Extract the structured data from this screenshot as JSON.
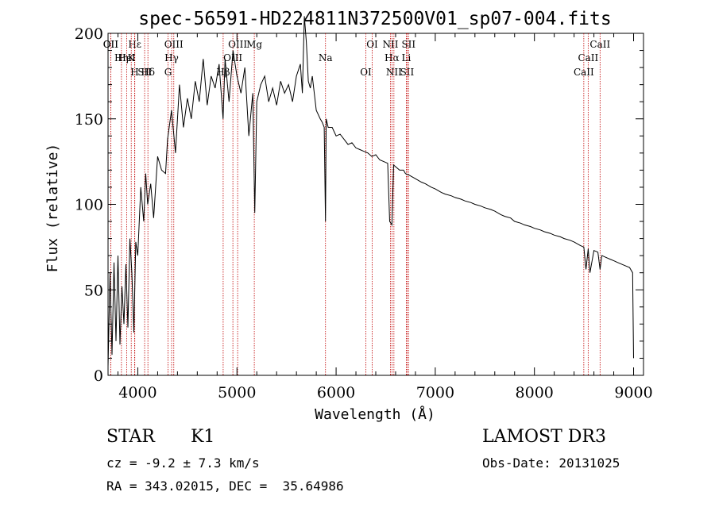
{
  "chart_data": {
    "type": "line",
    "title": "spec-56591-HD224811N372500V01_sp07-004.fits",
    "xlabel": "Wavelength (Å)",
    "ylabel": "Flux (relative)",
    "xlim": [
      3700,
      9100
    ],
    "ylim": [
      0,
      200
    ],
    "x_ticks": [
      4000,
      5000,
      6000,
      7000,
      8000,
      9000
    ],
    "y_ticks": [
      0,
      50,
      100,
      150,
      200
    ],
    "series": [
      {
        "name": "flux",
        "x": [
          3700,
          3720,
          3740,
          3760,
          3780,
          3800,
          3820,
          3840,
          3860,
          3880,
          3900,
          3920,
          3940,
          3960,
          3980,
          4000,
          4030,
          4060,
          4080,
          4100,
          4130,
          4160,
          4200,
          4240,
          4280,
          4300,
          4340,
          4380,
          4420,
          4460,
          4500,
          4540,
          4580,
          4620,
          4660,
          4700,
          4740,
          4780,
          4820,
          4860,
          4880,
          4920,
          4960,
          5000,
          5040,
          5080,
          5120,
          5160,
          5180,
          5200,
          5240,
          5280,
          5320,
          5360,
          5400,
          5440,
          5480,
          5520,
          5560,
          5600,
          5640,
          5660,
          5680,
          5700,
          5720,
          5740,
          5760,
          5800,
          5840,
          5860,
          5880,
          5893,
          5900,
          5920,
          5960,
          6000,
          6040,
          6080,
          6120,
          6160,
          6200,
          6240,
          6280,
          6320,
          6360,
          6400,
          6440,
          6480,
          6520,
          6540,
          6563,
          6580,
          6600,
          6640,
          6680,
          6700,
          6740,
          6800,
          6860,
          6900,
          6960,
          7000,
          7060,
          7100,
          7160,
          7200,
          7260,
          7300,
          7360,
          7400,
          7460,
          7500,
          7560,
          7600,
          7660,
          7700,
          7760,
          7800,
          7860,
          7900,
          7960,
          8000,
          8060,
          8100,
          8160,
          8200,
          8260,
          8300,
          8360,
          8400,
          8460,
          8498,
          8520,
          8542,
          8560,
          8600,
          8640,
          8662,
          8680,
          8720,
          8760,
          8800,
          8840,
          8880,
          8920,
          8960,
          8990,
          9000
        ],
        "values": [
          5,
          60,
          12,
          66,
          20,
          70,
          18,
          52,
          30,
          65,
          28,
          80,
          60,
          25,
          78,
          70,
          110,
          90,
          118,
          100,
          112,
          92,
          128,
          120,
          118,
          138,
          155,
          130,
          170,
          145,
          162,
          150,
          172,
          160,
          185,
          158,
          175,
          168,
          182,
          150,
          185,
          160,
          190,
          175,
          165,
          180,
          140,
          165,
          95,
          160,
          170,
          175,
          160,
          168,
          158,
          172,
          165,
          170,
          160,
          175,
          182,
          165,
          210,
          195,
          172,
          168,
          175,
          155,
          150,
          148,
          145,
          90,
          150,
          145,
          145,
          140,
          141,
          138,
          135,
          136,
          133,
          132,
          131,
          130,
          128,
          129,
          126,
          125,
          124,
          90,
          88,
          123,
          122,
          120,
          120,
          118,
          117,
          115,
          113,
          112,
          110,
          109,
          107,
          106,
          105,
          104,
          103,
          102,
          101,
          100,
          99,
          98,
          97,
          96,
          94,
          93,
          92,
          90,
          89,
          88,
          87,
          86,
          85,
          84,
          83,
          82,
          81,
          80,
          79,
          78,
          76,
          75,
          62,
          74,
          60,
          73,
          72,
          62,
          70,
          69,
          68,
          67,
          66,
          65,
          64,
          63,
          60,
          10
        ]
      }
    ],
    "lines": [
      {
        "name": "Hε",
        "x": 3970
      },
      {
        "name": "K",
        "x": 3934
      },
      {
        "name": "Hδ",
        "x": 4102
      },
      {
        "name": "OII",
        "x": 3727
      },
      {
        "name": "HeI",
        "x": 3889
      },
      {
        "name": "SII",
        "x": 4069
      },
      {
        "name": "OII",
        "x": 3727
      },
      {
        "name": "Hη",
        "x": 3835
      },
      {
        "name": "H",
        "x": 3968
      },
      {
        "name": "OIII",
        "x": 4363
      },
      {
        "name": "Hγ",
        "x": 4341
      },
      {
        "name": "G",
        "x": 4305
      },
      {
        "name": "OIII",
        "x": 5007
      },
      {
        "name": "OIII",
        "x": 4959
      },
      {
        "name": "Hβ",
        "x": 4861
      },
      {
        "name": "Mg",
        "x": 5175
      },
      {
        "name": "Na",
        "x": 5893
      },
      {
        "name": "OI",
        "x": 6300
      },
      {
        "name": "OI",
        "x": 6364
      },
      {
        "name": "Hα",
        "x": 6563
      },
      {
        "name": "SII",
        "x": 6716
      },
      {
        "name": "NII",
        "x": 6548
      },
      {
        "name": "Li",
        "x": 6708
      },
      {
        "name": "NII",
        "x": 6583
      },
      {
        "name": "SII",
        "x": 6731
      },
      {
        "name": "CaII",
        "x": 8542
      },
      {
        "name": "CaII",
        "x": 8498
      },
      {
        "name": "CaII",
        "x": 8662
      }
    ]
  },
  "footer": {
    "class": "STAR",
    "subclass": "K1",
    "cz": "cz = -9.2 ± 7.3 km/s",
    "coords": "RA = 343.02015, DEC =  35.64986",
    "survey": "LAMOST DR3",
    "obs_date": "Obs-Date: 20131025"
  },
  "colors": {
    "line_marker": "#c00000",
    "trace": "#000000"
  }
}
